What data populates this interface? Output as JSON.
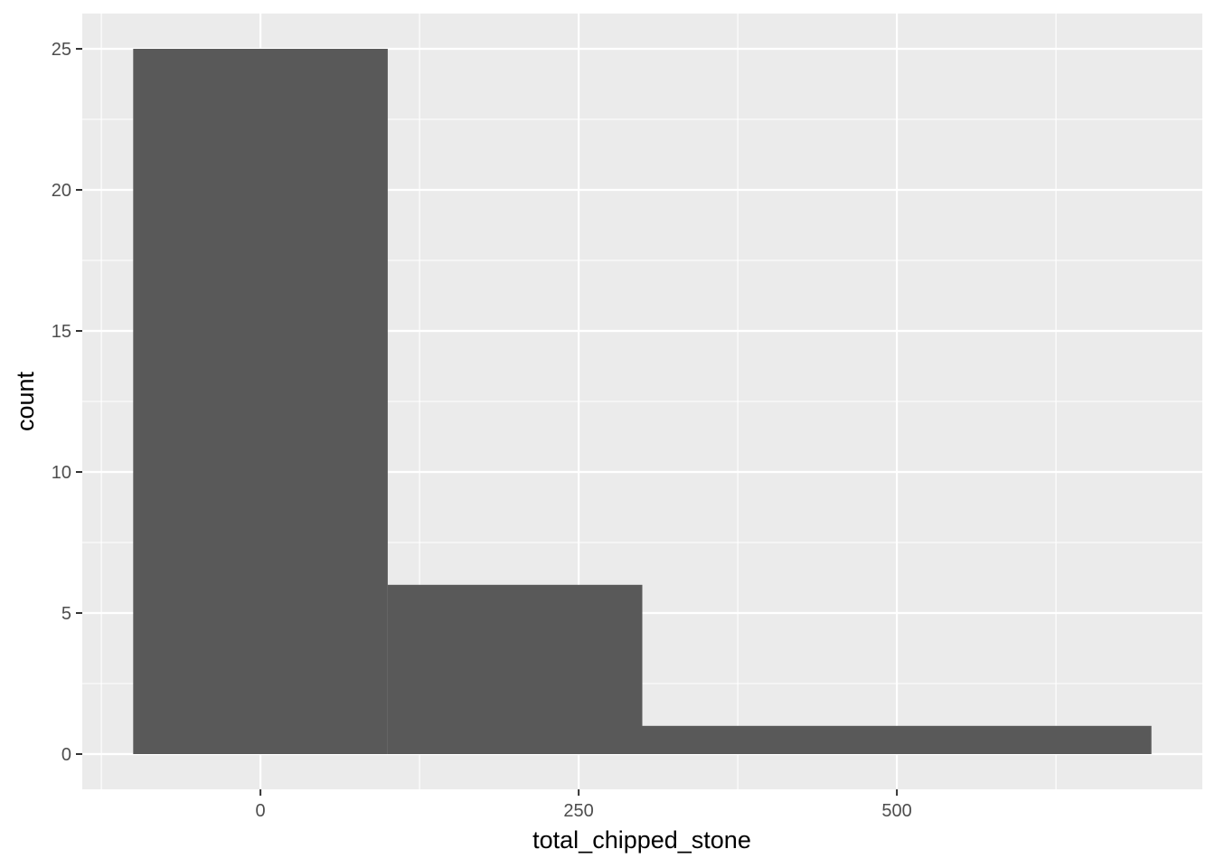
{
  "chart_data": {
    "type": "bar",
    "bins": [
      {
        "start": -100,
        "end": 100,
        "count": 25
      },
      {
        "start": 100,
        "end": 300,
        "count": 6
      },
      {
        "start": 300,
        "end": 700,
        "count": 1
      }
    ],
    "xlabel": "total_chipped_stone",
    "ylabel": "count",
    "xlim": [
      -140,
      740
    ],
    "ylim": [
      -1.25,
      26.25
    ],
    "x_ticks": [
      0,
      250,
      500
    ],
    "x_tick_labels": [
      "0",
      "250",
      "500"
    ],
    "x_minor_ticks": [
      -125,
      125,
      375,
      625
    ],
    "y_ticks": [
      0,
      5,
      10,
      15,
      20,
      25
    ],
    "y_tick_labels": [
      "0",
      "5",
      "10",
      "15",
      "20",
      "25"
    ],
    "y_minor_ticks": [
      2.5,
      7.5,
      12.5,
      17.5,
      22.5
    ],
    "grid": true,
    "legend": "none",
    "colors": {
      "panel": "#ebebeb",
      "grid": "#ffffff",
      "bar": "#595959",
      "tick": "#333333",
      "tick_label": "#4d4d4d",
      "title": "#000000"
    }
  }
}
